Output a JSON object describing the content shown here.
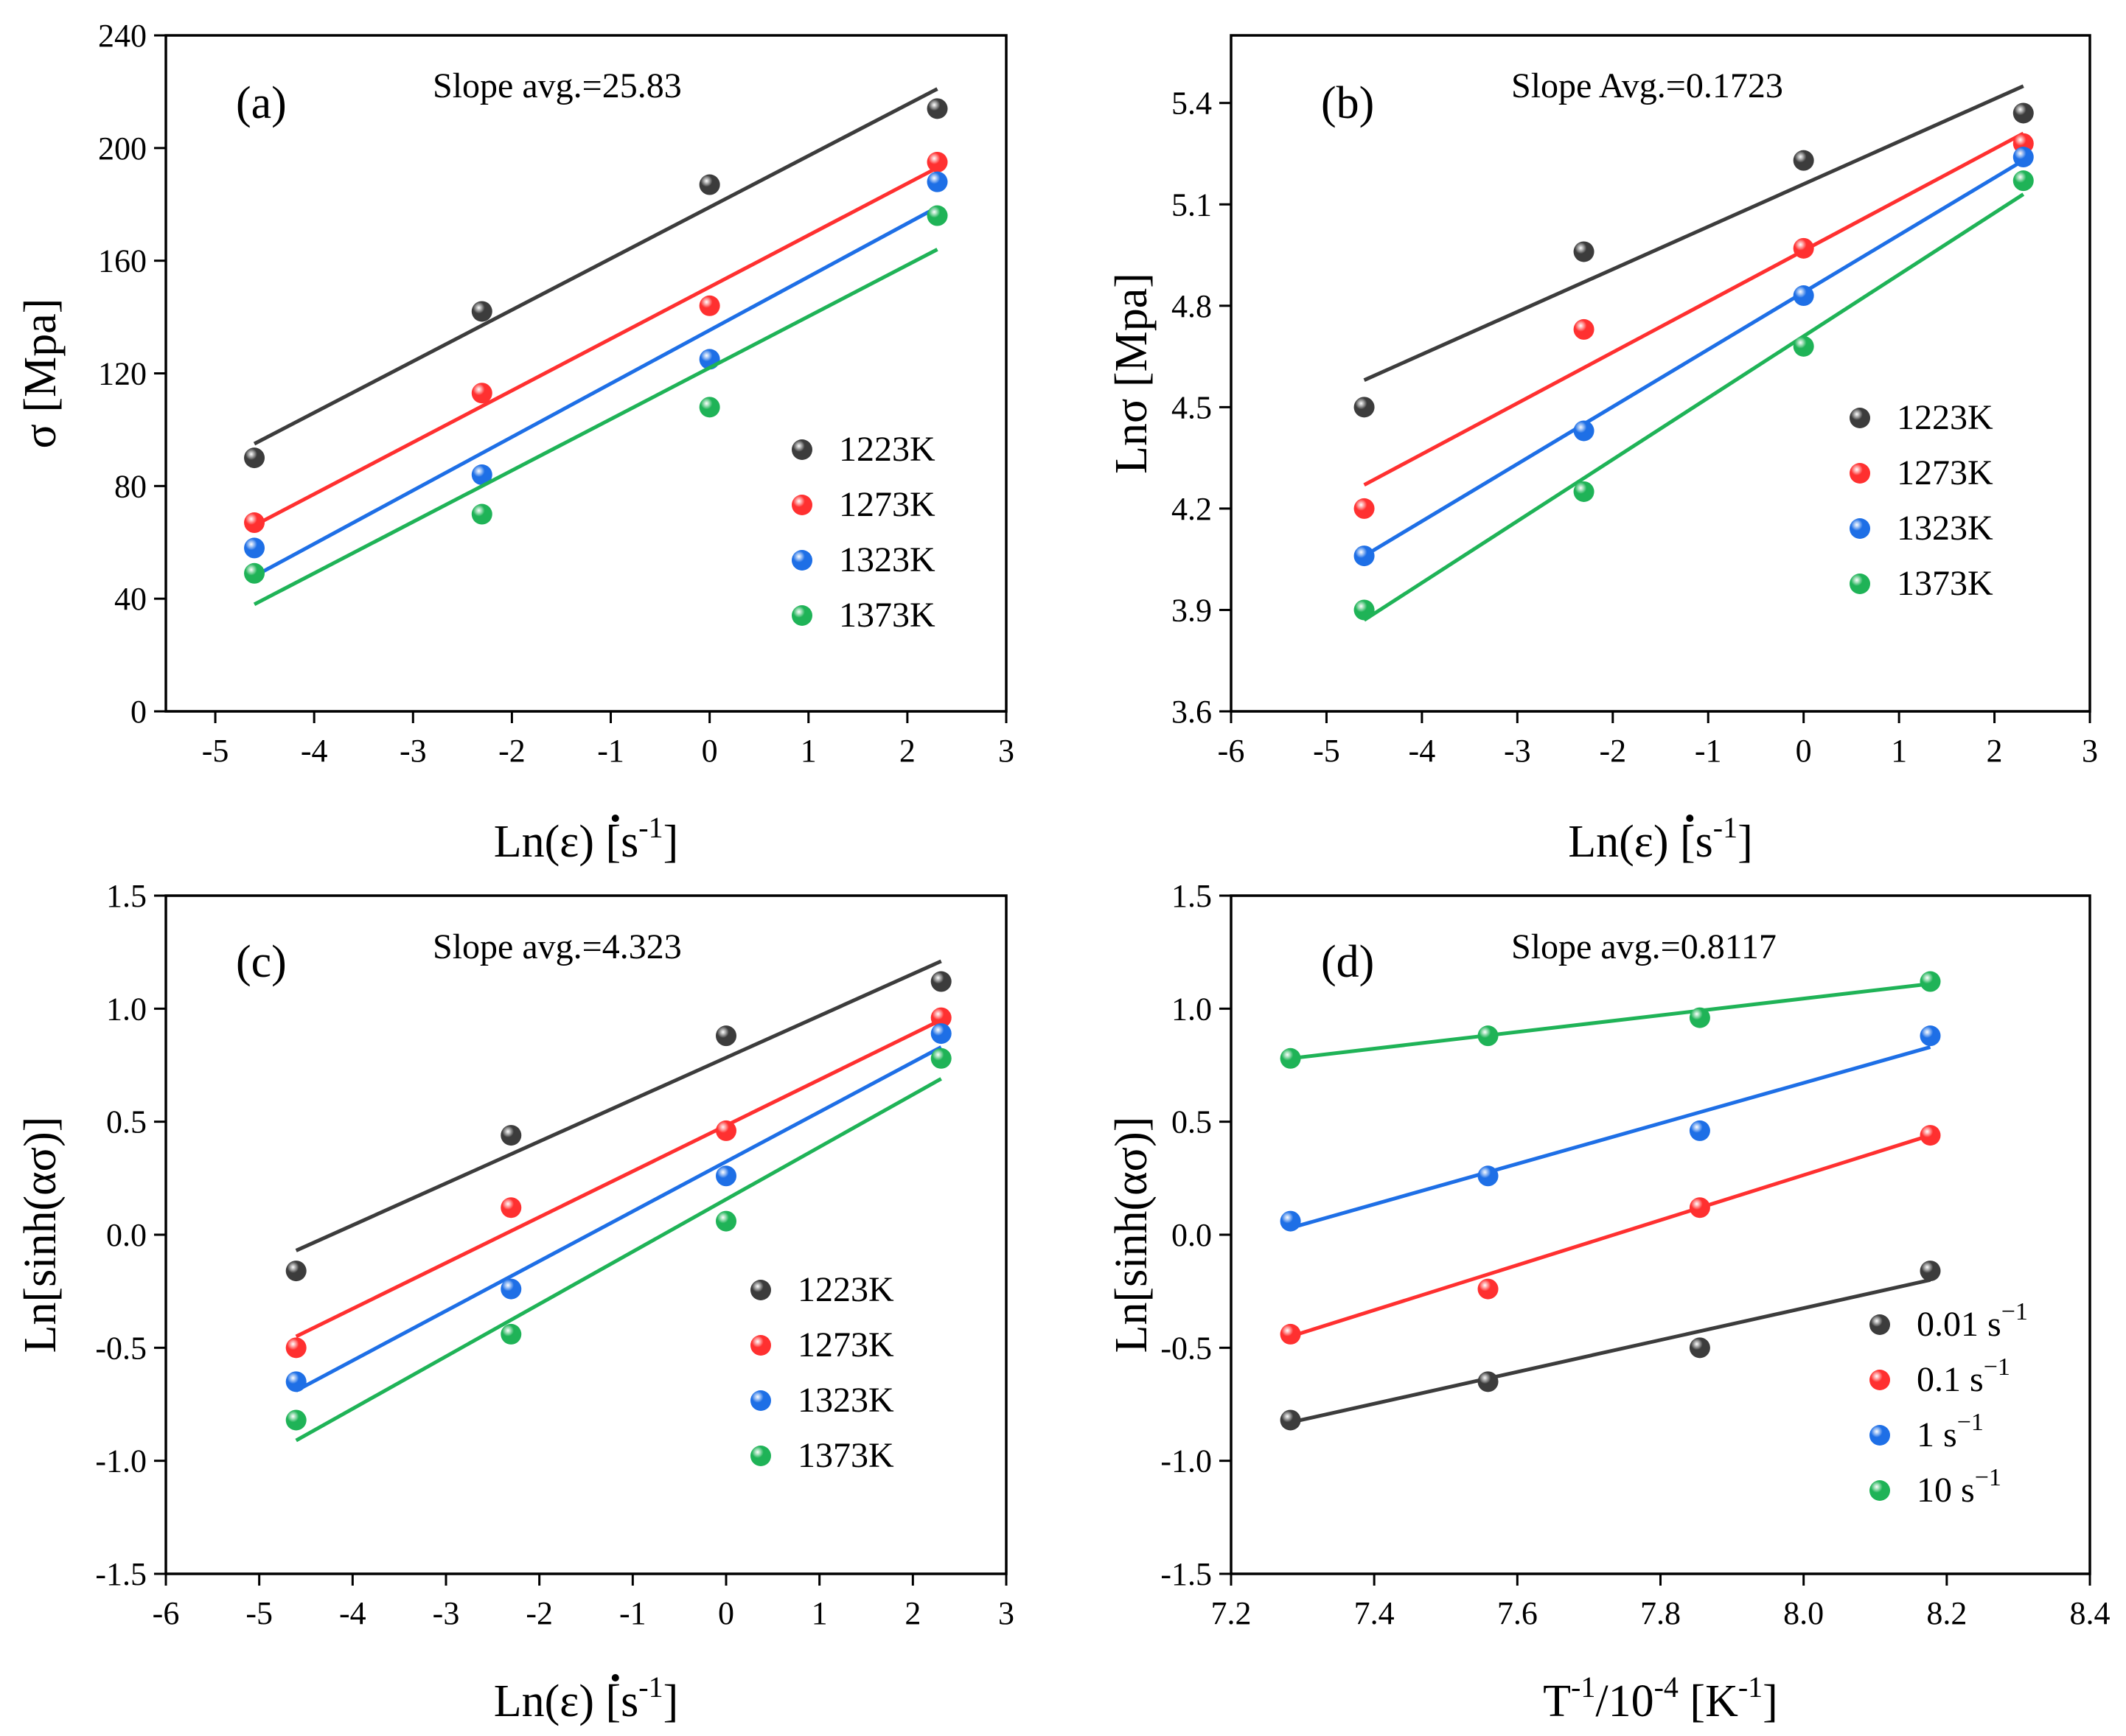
{
  "colors": {
    "c1223": "#3c3c3c",
    "c1273": "#ff3030",
    "c1323": "#1e6fe6",
    "c1373": "#1fb357"
  },
  "chart_data": [
    {
      "type": "scatter",
      "panel_label": "(a)",
      "annotation": "Slope avg.=25.83",
      "xlabel": {
        "main": "Ln(ε) [s",
        "sup": "-1",
        "end": "]"
      },
      "ylabel": "σ [Mpa]",
      "xlim": [
        -5.5,
        3
      ],
      "ylim": [
        0,
        240
      ],
      "xticks": [
        -5,
        -4,
        -3,
        -2,
        -1,
        0,
        1,
        2,
        3
      ],
      "yticks": [
        0,
        40,
        80,
        120,
        160,
        200,
        240
      ],
      "xtick_labels": [
        "-5",
        "-4",
        "-3",
        "-2",
        "-1",
        "0",
        "1",
        "2",
        "3"
      ],
      "ytick_labels": [
        "0",
        "40",
        "80",
        "120",
        "160",
        "200",
        "240"
      ],
      "legend": {
        "position": "right",
        "items": [
          {
            "main": "1223K",
            "color": "#3c3c3c"
          },
          {
            "main": "1273K",
            "color": "#ff3030"
          },
          {
            "main": "1323K",
            "color": "#1e6fe6"
          },
          {
            "main": "1373K",
            "color": "#1fb357"
          }
        ]
      },
      "series": [
        {
          "name": "1223K",
          "color": "#3c3c3c",
          "x": [
            -4.605,
            -2.303,
            0,
            2.303
          ],
          "y": [
            90,
            142,
            187,
            214
          ],
          "fit": [
            [
              -4.605,
              95
            ],
            [
              2.303,
              221
            ]
          ]
        },
        {
          "name": "1273K",
          "color": "#ff3030",
          "x": [
            -4.605,
            -2.303,
            0,
            2.303
          ],
          "y": [
            67,
            113,
            144,
            195
          ],
          "fit": [
            [
              -4.605,
              66
            ],
            [
              2.303,
              193
            ]
          ]
        },
        {
          "name": "1323K",
          "color": "#1e6fe6",
          "x": [
            -4.605,
            -2.303,
            0,
            2.303
          ],
          "y": [
            58,
            84,
            125,
            188
          ],
          "fit": [
            [
              -4.605,
              48
            ],
            [
              2.303,
              179
            ]
          ]
        },
        {
          "name": "1373K",
          "color": "#1fb357",
          "x": [
            -4.605,
            -2.303,
            0,
            2.303
          ],
          "y": [
            49,
            70,
            108,
            176
          ],
          "fit": [
            [
              -4.605,
              38
            ],
            [
              2.303,
              164
            ]
          ]
        }
      ]
    },
    {
      "type": "scatter",
      "panel_label": "(b)",
      "annotation": "Slope Avg.=0.1723",
      "xlabel": {
        "main": "Ln(ε) [s",
        "sup": "-1",
        "end": "]"
      },
      "ylabel": "Lnσ [Mpa]",
      "xlim": [
        -6,
        3
      ],
      "ylim": [
        3.6,
        5.6
      ],
      "xticks": [
        -6,
        -5,
        -4,
        -3,
        -2,
        -1,
        0,
        1,
        2,
        3
      ],
      "yticks": [
        3.6,
        3.9,
        4.2,
        4.5,
        4.8,
        5.1,
        5.4
      ],
      "xtick_labels": [
        "-6",
        "-5",
        "-4",
        "-3",
        "-2",
        "-1",
        "0",
        "1",
        "2",
        "3"
      ],
      "ytick_labels": [
        "3.6",
        "3.9",
        "4.2",
        "4.5",
        "4.8",
        "5.1",
        "5.4"
      ],
      "legend": {
        "position": "right",
        "items": [
          {
            "main": "1223K",
            "color": "#3c3c3c"
          },
          {
            "main": "1273K",
            "color": "#ff3030"
          },
          {
            "main": "1323K",
            "color": "#1e6fe6"
          },
          {
            "main": "1373K",
            "color": "#1fb357"
          }
        ]
      },
      "series": [
        {
          "name": "1223K",
          "color": "#3c3c3c",
          "x": [
            -4.605,
            -2.303,
            0,
            2.303
          ],
          "y": [
            4.5,
            4.96,
            5.23,
            5.37
          ],
          "fit": [
            [
              -4.605,
              4.58
            ],
            [
              2.303,
              5.45
            ]
          ]
        },
        {
          "name": "1273K",
          "color": "#ff3030",
          "x": [
            -4.605,
            -2.303,
            0,
            2.303
          ],
          "y": [
            4.2,
            4.73,
            4.97,
            5.28
          ],
          "fit": [
            [
              -4.605,
              4.27
            ],
            [
              2.303,
              5.31
            ]
          ]
        },
        {
          "name": "1323K",
          "color": "#1e6fe6",
          "x": [
            -4.605,
            -2.303,
            0,
            2.303
          ],
          "y": [
            4.06,
            4.43,
            4.83,
            5.24
          ],
          "fit": [
            [
              -4.605,
              4.06
            ],
            [
              2.303,
              5.23
            ]
          ]
        },
        {
          "name": "1373K",
          "color": "#1fb357",
          "x": [
            -4.605,
            -2.303,
            0,
            2.303
          ],
          "y": [
            3.9,
            4.25,
            4.68,
            5.17
          ],
          "fit": [
            [
              -4.605,
              3.87
            ],
            [
              2.303,
              5.13
            ]
          ]
        }
      ]
    },
    {
      "type": "scatter",
      "panel_label": "(c)",
      "annotation": "Slope avg.=4.323",
      "xlabel": {
        "main": "Ln(ε) [s",
        "sup": "-1",
        "end": "]"
      },
      "ylabel": "Ln[sinh(ασ)]",
      "xlim": [
        -6,
        3
      ],
      "ylim": [
        -1.5,
        1.5
      ],
      "xticks": [
        -6,
        -5,
        -4,
        -3,
        -2,
        -1,
        0,
        1,
        2,
        3
      ],
      "yticks": [
        -1.5,
        -1.0,
        -0.5,
        0.0,
        0.5,
        1.0,
        1.5
      ],
      "xtick_labels": [
        "-6",
        "-5",
        "-4",
        "-3",
        "-2",
        "-1",
        "0",
        "1",
        "2",
        "3"
      ],
      "ytick_labels": [
        "-1.5",
        "-1.0",
        "-0.5",
        "0.0",
        "0.5",
        "1.0",
        "1.5"
      ],
      "legend": {
        "position": "bottom-right",
        "items": [
          {
            "main": "1223K",
            "color": "#3c3c3c"
          },
          {
            "main": "1273K",
            "color": "#ff3030"
          },
          {
            "main": "1323K",
            "color": "#1e6fe6"
          },
          {
            "main": "1373K",
            "color": "#1fb357"
          }
        ]
      },
      "series": [
        {
          "name": "1223K",
          "color": "#3c3c3c",
          "x": [
            -4.605,
            -2.303,
            0,
            2.303
          ],
          "y": [
            -0.16,
            0.44,
            0.88,
            1.12
          ],
          "fit": [
            [
              -4.605,
              -0.07
            ],
            [
              2.303,
              1.21
            ]
          ]
        },
        {
          "name": "1273K",
          "color": "#ff3030",
          "x": [
            -4.605,
            -2.303,
            0,
            2.303
          ],
          "y": [
            -0.5,
            0.12,
            0.46,
            0.96
          ],
          "fit": [
            [
              -4.605,
              -0.45
            ],
            [
              2.303,
              0.95
            ]
          ]
        },
        {
          "name": "1323K",
          "color": "#1e6fe6",
          "x": [
            -4.605,
            -2.303,
            0,
            2.303
          ],
          "y": [
            -0.65,
            -0.24,
            0.26,
            0.89
          ],
          "fit": [
            [
              -4.605,
              -0.69
            ],
            [
              2.303,
              0.83
            ]
          ]
        },
        {
          "name": "1373K",
          "color": "#1fb357",
          "x": [
            -4.605,
            -2.303,
            0,
            2.303
          ],
          "y": [
            -0.82,
            -0.44,
            0.06,
            0.78
          ],
          "fit": [
            [
              -4.605,
              -0.91
            ],
            [
              2.303,
              0.69
            ]
          ]
        }
      ]
    },
    {
      "type": "scatter",
      "panel_label": "(d)",
      "annotation": "Slope avg.=0.8117",
      "xlabel": {
        "main": "T",
        "sup": "-1",
        "mid": "/10",
        "sup2": "-4",
        "end": " [K",
        "sup3": "-1",
        "end2": "]"
      },
      "ylabel": "Ln[sinh(ασ)]",
      "xlim": [
        7.2,
        8.4
      ],
      "ylim": [
        -1.5,
        1.5
      ],
      "xticks": [
        7.2,
        7.4,
        7.6,
        7.8,
        8.0,
        8.2,
        8.4
      ],
      "yticks": [
        -1.5,
        -1.0,
        -0.5,
        0.0,
        0.5,
        1.0,
        1.5
      ],
      "xtick_labels": [
        "7.2",
        "7.4",
        "7.6",
        "7.8",
        "8.0",
        "8.2",
        "8.4"
      ],
      "ytick_labels": [
        "-1.5",
        "-1.0",
        "-0.5",
        "0.0",
        "0.5",
        "1.0",
        "1.5"
      ],
      "legend": {
        "position": "bottom-right",
        "items": [
          {
            "main": "0.01 s",
            "sup": "−1",
            "color": "#3c3c3c"
          },
          {
            "main": "0.1 s",
            "sup": "−1",
            "color": "#ff3030"
          },
          {
            "main": "1 s",
            "sup": "−1",
            "color": "#1e6fe6"
          },
          {
            "main": "10 s",
            "sup": "−1",
            "color": "#1fb357"
          }
        ]
      },
      "series": [
        {
          "name": "0.01 s−1",
          "color": "#3c3c3c",
          "x": [
            7.283,
            7.559,
            7.855,
            8.177
          ],
          "y": [
            -0.82,
            -0.65,
            -0.5,
            -0.16
          ],
          "fit": [
            [
              7.283,
              -0.83
            ],
            [
              8.177,
              -0.2
            ]
          ]
        },
        {
          "name": "0.1 s−1",
          "color": "#ff3030",
          "x": [
            7.283,
            7.559,
            7.855,
            8.177
          ],
          "y": [
            -0.44,
            -0.24,
            0.12,
            0.44
          ],
          "fit": [
            [
              7.283,
              -0.45
            ],
            [
              8.177,
              0.44
            ]
          ]
        },
        {
          "name": "1 s−1",
          "color": "#1e6fe6",
          "x": [
            7.283,
            7.559,
            7.855,
            8.177
          ],
          "y": [
            0.06,
            0.26,
            0.46,
            0.88
          ],
          "fit": [
            [
              7.283,
              0.03
            ],
            [
              8.177,
              0.83
            ]
          ]
        },
        {
          "name": "10 s−1",
          "color": "#1fb357",
          "x": [
            7.283,
            7.559,
            7.855,
            8.177
          ],
          "y": [
            0.78,
            0.88,
            0.96,
            1.12
          ],
          "fit": [
            [
              7.283,
              0.78
            ],
            [
              8.177,
              1.11
            ]
          ]
        }
      ]
    }
  ]
}
